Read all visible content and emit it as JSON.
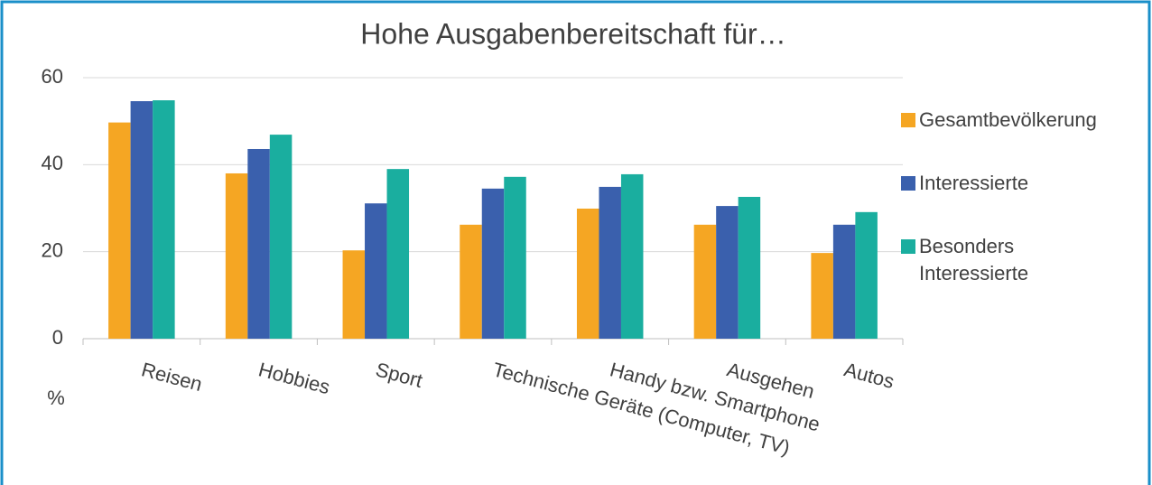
{
  "chart_data": {
    "type": "bar",
    "title": "Hohe Ausgabenbereitschaft für…",
    "y_label": "%",
    "categories": [
      "Reisen",
      "Hobbies",
      "Sport",
      "Technische Geräte (Computer, TV)",
      "Handy bzw. Smartphone",
      "Ausgehen",
      "Autos"
    ],
    "series": [
      {
        "name": "Gesamtbevölkerung",
        "color": "#f5a623",
        "values": [
          49.7,
          38,
          20.3,
          26.2,
          29.9,
          26.2,
          19.7
        ]
      },
      {
        "name": "Interessierte",
        "color": "#3a60ad",
        "values": [
          54.6,
          43.6,
          31.1,
          34.5,
          34.9,
          30.5,
          26.2
        ]
      },
      {
        "name": "Besonders Interessierte",
        "color": "#1aae9f",
        "values": [
          54.8,
          46.9,
          39,
          37.2,
          37.8,
          32.6,
          29.1
        ]
      }
    ],
    "ylim": [
      0,
      60
    ],
    "yticks": [
      0,
      20,
      40,
      60
    ],
    "grid": true,
    "legend": "right"
  }
}
